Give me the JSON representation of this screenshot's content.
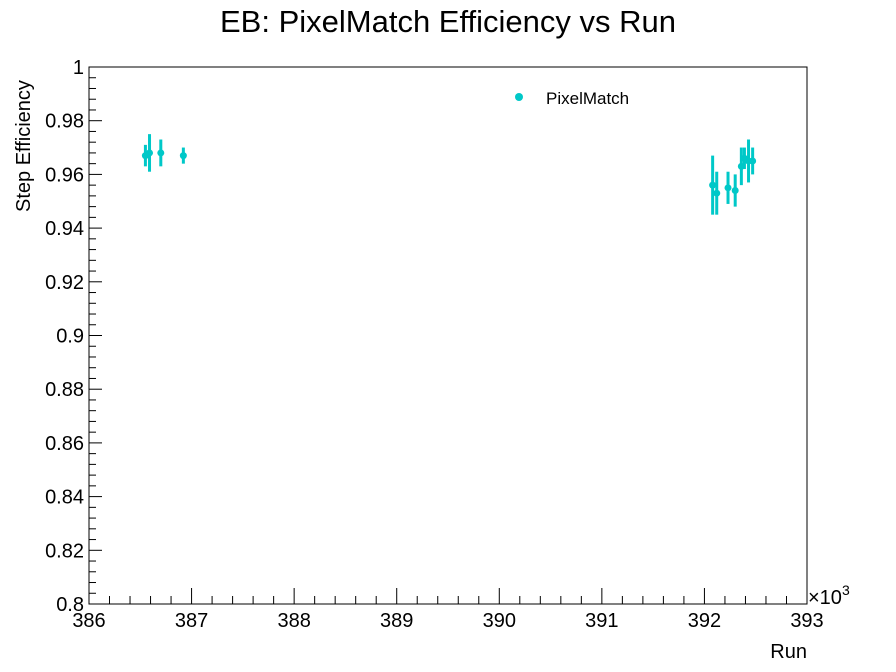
{
  "chart_data": {
    "type": "scatter",
    "title": "EB: PixelMatch Efficiency vs Run",
    "xlabel": "Run",
    "ylabel": "Step Efficiency",
    "x_multiplier_label": "×10",
    "x_multiplier_exponent": "3",
    "xlim": [
      386000,
      393000
    ],
    "ylim": [
      0.8,
      1.0
    ],
    "x_ticks": [
      386000,
      387000,
      388000,
      389000,
      390000,
      391000,
      392000,
      393000
    ],
    "x_tick_labels": [
      "386",
      "387",
      "388",
      "389",
      "390",
      "391",
      "392",
      "393"
    ],
    "y_ticks": [
      0.8,
      0.82,
      0.84,
      0.86,
      0.88,
      0.9,
      0.92,
      0.94,
      0.96,
      0.98,
      1.0
    ],
    "y_tick_labels": [
      "0.8",
      "0.82",
      "0.84",
      "0.86",
      "0.88",
      "0.9",
      "0.92",
      "0.94",
      "0.96",
      "0.98",
      "1"
    ],
    "grid": false,
    "legend": "top-center",
    "marker_color": "#00c8c8",
    "series": [
      {
        "name": "PixelMatch",
        "points": [
          {
            "x": 386550,
            "y": 0.967,
            "err": 0.004
          },
          {
            "x": 386590,
            "y": 0.968,
            "err": 0.007
          },
          {
            "x": 386700,
            "y": 0.968,
            "err": 0.005
          },
          {
            "x": 386920,
            "y": 0.967,
            "err": 0.003
          },
          {
            "x": 392080,
            "y": 0.956,
            "err": 0.011
          },
          {
            "x": 392120,
            "y": 0.953,
            "err": 0.008
          },
          {
            "x": 392230,
            "y": 0.955,
            "err": 0.006
          },
          {
            "x": 392300,
            "y": 0.954,
            "err": 0.006
          },
          {
            "x": 392360,
            "y": 0.963,
            "err": 0.007
          },
          {
            "x": 392390,
            "y": 0.966,
            "err": 0.004
          },
          {
            "x": 392430,
            "y": 0.965,
            "err": 0.008
          },
          {
            "x": 392470,
            "y": 0.965,
            "err": 0.005
          }
        ]
      }
    ]
  }
}
